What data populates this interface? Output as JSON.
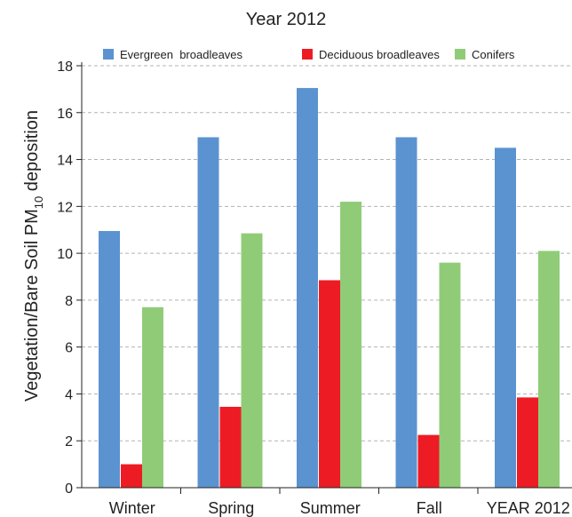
{
  "chart_data": {
    "type": "bar",
    "title": "Year 2012",
    "ylabel_parts": [
      "Vegetation/Bare Soil PM",
      "10",
      " deposition"
    ],
    "xlabel": "",
    "categories": [
      "Winter",
      "Spring",
      "Summer",
      "Fall",
      "YEAR 2012"
    ],
    "series": [
      {
        "name": "Evergreen  broadleaves",
        "color": "#5b93d0",
        "values": [
          10.95,
          14.95,
          17.05,
          14.95,
          14.5
        ]
      },
      {
        "name": "Deciduous broadleaves",
        "color": "#ed1c24",
        "values": [
          1.0,
          3.45,
          8.85,
          2.25,
          3.85
        ]
      },
      {
        "name": "Conifers",
        "color": "#90cc78",
        "values": [
          7.7,
          10.85,
          12.2,
          9.6,
          10.1
        ]
      }
    ],
    "ylim": [
      0,
      18
    ],
    "yticks": [
      0,
      2,
      4,
      6,
      8,
      10,
      12,
      14,
      16,
      18
    ],
    "grid": true,
    "legend_position": "top"
  }
}
